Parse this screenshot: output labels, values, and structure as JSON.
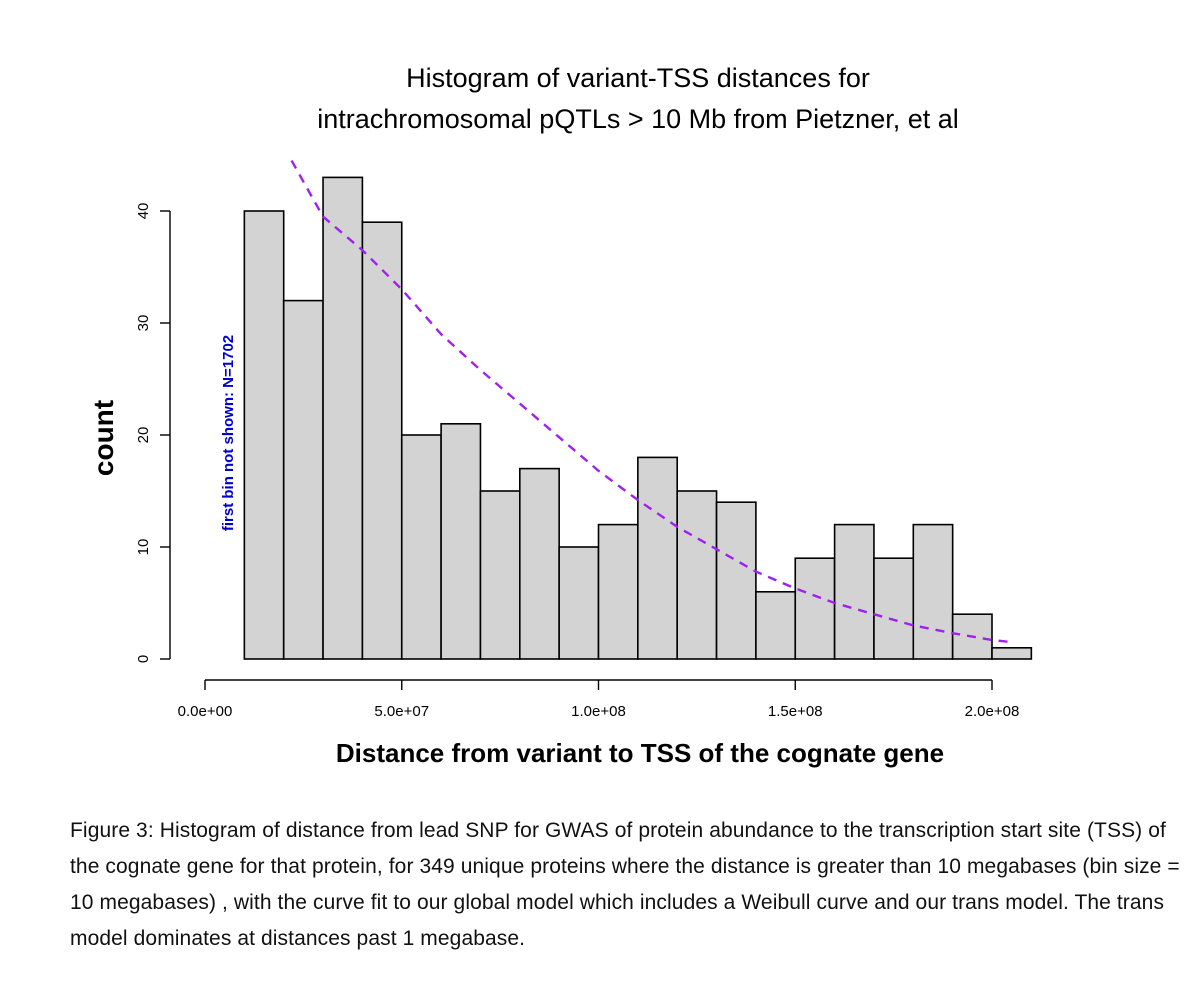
{
  "chart_data": {
    "type": "bar",
    "title": [
      "Histogram of variant-TSS distances for",
      "intrachromosomal pQTLs > 10 Mb from Pietzner, et al"
    ],
    "xlabel": "Distance from variant to TSS of the cognate gene",
    "ylabel": "count",
    "annotation": "first bin not shown: N=1702",
    "xlim": [
      0,
      210000000
    ],
    "ylim": [
      0,
      45
    ],
    "x_ticks": [
      0,
      50000000,
      100000000,
      150000000,
      200000000
    ],
    "x_tick_labels": [
      "0.0e+00",
      "5.0e+07",
      "1.0e+08",
      "1.5e+08",
      "2.0e+08"
    ],
    "y_ticks": [
      0,
      10,
      20,
      30,
      40
    ],
    "y_tick_labels": [
      "0",
      "10",
      "20",
      "30",
      "40"
    ],
    "bin_width": 10000000,
    "bin_starts": [
      10000000,
      20000000,
      30000000,
      40000000,
      50000000,
      60000000,
      70000000,
      80000000,
      90000000,
      100000000,
      110000000,
      120000000,
      130000000,
      140000000,
      150000000,
      160000000,
      170000000,
      180000000,
      190000000,
      200000000
    ],
    "values": [
      40,
      32,
      43,
      39,
      20,
      21,
      15,
      17,
      10,
      12,
      18,
      15,
      14,
      6,
      9,
      12,
      9,
      12,
      4,
      1
    ],
    "fit_curve": {
      "style": "dashed",
      "color": "#a020f0",
      "x": [
        22000000,
        30000000,
        40000000,
        50000000,
        60000000,
        70000000,
        80000000,
        90000000,
        100000000,
        110000000,
        120000000,
        130000000,
        140000000,
        150000000,
        160000000,
        170000000,
        180000000,
        190000000,
        200000000,
        205000000
      ],
      "y": [
        44.5,
        39.5,
        36.5,
        33.0,
        29.0,
        25.8,
        22.8,
        19.8,
        16.8,
        14.2,
        11.8,
        9.8,
        7.8,
        6.3,
        5.0,
        4.0,
        3.0,
        2.3,
        1.7,
        1.5
      ]
    },
    "bar_fill": "#d3d3d3",
    "bar_stroke": "#000000",
    "annotation_color": "#0000cc"
  },
  "caption": "Figure 3: Histogram of distance from lead SNP for GWAS of protein abundance to the transcription start site (TSS) of the cognate gene for that protein, for 349 unique proteins where the distance is greater than 10 megabases (bin size = 10 megabases) , with the curve fit to our global model which includes a Weibull curve and our trans model. The trans model dominates at distances past 1 megabase."
}
